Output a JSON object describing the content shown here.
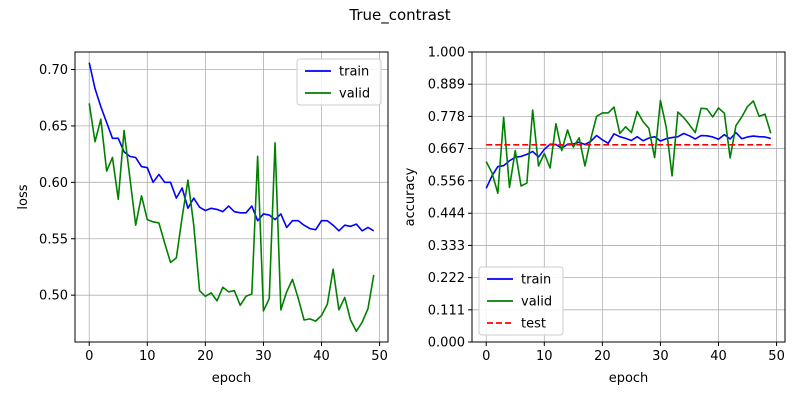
{
  "figure": {
    "title": "True_contrast"
  },
  "colors": {
    "train": "#0000ff",
    "valid": "#008000",
    "test": "#ff0000",
    "grid": "#b0b0b0"
  },
  "chart_data": [
    {
      "type": "line",
      "xlabel": "epoch",
      "ylabel": "loss",
      "xlim": [
        -2.45,
        51.45
      ],
      "ylim": [
        0.4585,
        0.7155
      ],
      "xticks": [
        0,
        10,
        20,
        30,
        40,
        50
      ],
      "xtick_labels": [
        "0",
        "10",
        "20",
        "30",
        "40",
        "50"
      ],
      "yticks": [
        0.5,
        0.55,
        0.6,
        0.65,
        0.7
      ],
      "ytick_labels": [
        "0.50",
        "0.55",
        "0.60",
        "0.65",
        "0.70"
      ],
      "grid": true,
      "legend_position": "top-right",
      "x": [
        0,
        1,
        2,
        3,
        4,
        5,
        6,
        7,
        8,
        9,
        10,
        11,
        12,
        13,
        14,
        15,
        16,
        17,
        18,
        19,
        20,
        21,
        22,
        23,
        24,
        25,
        26,
        27,
        28,
        29,
        30,
        31,
        32,
        33,
        34,
        35,
        36,
        37,
        38,
        39,
        40,
        41,
        42,
        43,
        44,
        45,
        46,
        47,
        48,
        49
      ],
      "series": [
        {
          "name": "train",
          "color": "#0000ff",
          "style": "solid",
          "values": [
            0.706,
            0.683,
            0.667,
            0.653,
            0.639,
            0.639,
            0.627,
            0.623,
            0.622,
            0.614,
            0.613,
            0.6,
            0.607,
            0.6,
            0.6,
            0.586,
            0.595,
            0.577,
            0.586,
            0.578,
            0.575,
            0.577,
            0.576,
            0.574,
            0.579,
            0.574,
            0.573,
            0.573,
            0.579,
            0.566,
            0.572,
            0.571,
            0.567,
            0.572,
            0.56,
            0.566,
            0.566,
            0.562,
            0.559,
            0.558,
            0.566,
            0.566,
            0.562,
            0.557,
            0.562,
            0.561,
            0.563,
            0.557,
            0.56,
            0.557
          ]
        },
        {
          "name": "valid",
          "color": "#008000",
          "style": "solid",
          "values": [
            0.67,
            0.636,
            0.656,
            0.61,
            0.622,
            0.585,
            0.646,
            0.604,
            0.562,
            0.588,
            0.567,
            0.565,
            0.564,
            0.546,
            0.529,
            0.533,
            0.569,
            0.602,
            0.562,
            0.504,
            0.499,
            0.502,
            0.495,
            0.507,
            0.503,
            0.504,
            0.491,
            0.499,
            0.501,
            0.623,
            0.486,
            0.497,
            0.635,
            0.487,
            0.503,
            0.514,
            0.497,
            0.478,
            0.479,
            0.477,
            0.482,
            0.492,
            0.523,
            0.487,
            0.498,
            0.478,
            0.468,
            0.476,
            0.488,
            0.518
          ]
        }
      ]
    },
    {
      "type": "line",
      "xlabel": "epoch",
      "ylabel": "accuracy",
      "xlim": [
        -2.45,
        51.45
      ],
      "ylim": [
        0.0,
        1.0
      ],
      "xticks": [
        0,
        10,
        20,
        30,
        40,
        50
      ],
      "xtick_labels": [
        "0",
        "10",
        "20",
        "30",
        "40",
        "50"
      ],
      "yticks": [
        0.0,
        0.111,
        0.222,
        0.333,
        0.444,
        0.556,
        0.667,
        0.778,
        0.889,
        1.0
      ],
      "ytick_labels": [
        "0.000",
        "0.111",
        "0.222",
        "0.333",
        "0.444",
        "0.556",
        "0.667",
        "0.778",
        "0.889",
        "1.000"
      ],
      "grid": true,
      "legend_position": "bottom-left",
      "x": [
        0,
        1,
        2,
        3,
        4,
        5,
        6,
        7,
        8,
        9,
        10,
        11,
        12,
        13,
        14,
        15,
        16,
        17,
        18,
        19,
        20,
        21,
        22,
        23,
        24,
        25,
        26,
        27,
        28,
        29,
        30,
        31,
        32,
        33,
        34,
        35,
        36,
        37,
        38,
        39,
        40,
        41,
        42,
        43,
        44,
        45,
        46,
        47,
        48,
        49
      ],
      "series": [
        {
          "name": "train",
          "color": "#0000ff",
          "style": "solid",
          "values": [
            0.53,
            0.573,
            0.605,
            0.608,
            0.625,
            0.637,
            0.64,
            0.647,
            0.657,
            0.638,
            0.664,
            0.682,
            0.681,
            0.668,
            0.682,
            0.683,
            0.689,
            0.681,
            0.692,
            0.712,
            0.697,
            0.685,
            0.718,
            0.708,
            0.702,
            0.695,
            0.708,
            0.694,
            0.703,
            0.708,
            0.693,
            0.701,
            0.705,
            0.708,
            0.719,
            0.711,
            0.7,
            0.712,
            0.711,
            0.707,
            0.699,
            0.715,
            0.7,
            0.722,
            0.701,
            0.707,
            0.71,
            0.708,
            0.707,
            0.702
          ]
        },
        {
          "name": "valid",
          "color": "#008000",
          "style": "solid",
          "values": [
            0.622,
            0.583,
            0.513,
            0.775,
            0.533,
            0.66,
            0.538,
            0.548,
            0.8,
            0.607,
            0.65,
            0.6,
            0.753,
            0.66,
            0.731,
            0.672,
            0.704,
            0.607,
            0.7,
            0.778,
            0.79,
            0.79,
            0.81,
            0.719,
            0.742,
            0.722,
            0.795,
            0.76,
            0.737,
            0.636,
            0.833,
            0.74,
            0.573,
            0.793,
            0.774,
            0.749,
            0.722,
            0.806,
            0.804,
            0.776,
            0.807,
            0.789,
            0.635,
            0.746,
            0.776,
            0.812,
            0.831,
            0.778,
            0.786,
            0.72
          ]
        },
        {
          "name": "test",
          "color": "#ff0000",
          "style": "dashed",
          "values": [
            0.68,
            0.68,
            0.68,
            0.68,
            0.68,
            0.68,
            0.68,
            0.68,
            0.68,
            0.68,
            0.68,
            0.68,
            0.68,
            0.68,
            0.68,
            0.68,
            0.68,
            0.68,
            0.68,
            0.68,
            0.68,
            0.68,
            0.68,
            0.68,
            0.68,
            0.68,
            0.68,
            0.68,
            0.68,
            0.68,
            0.68,
            0.68,
            0.68,
            0.68,
            0.68,
            0.68,
            0.68,
            0.68,
            0.68,
            0.68,
            0.68,
            0.68,
            0.68,
            0.68,
            0.68,
            0.68,
            0.68,
            0.68,
            0.68,
            0.68
          ]
        }
      ]
    }
  ]
}
